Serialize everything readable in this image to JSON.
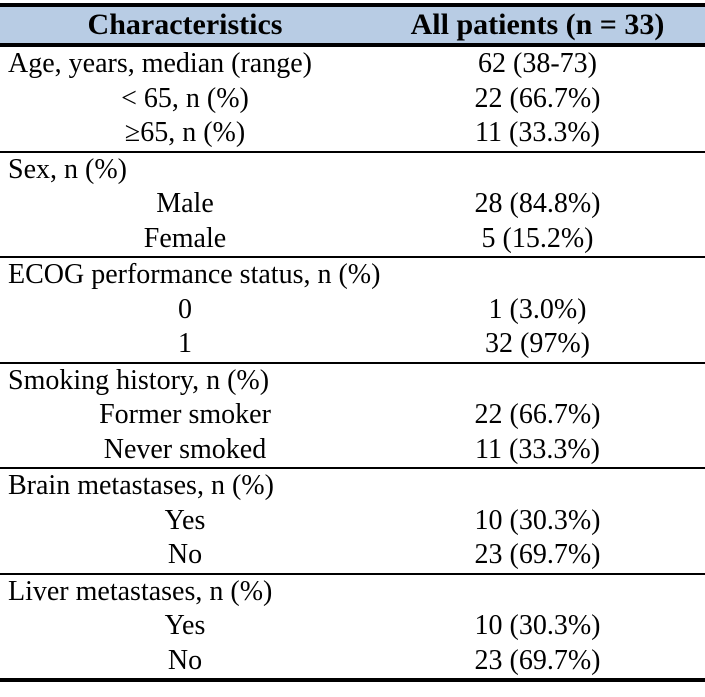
{
  "colors": {
    "header_bg": "#b8cce4",
    "rule": "#000000",
    "text": "#000000"
  },
  "table": {
    "header": {
      "characteristics_label": "Characteristics",
      "patients_label": "All patients (n = 33)"
    },
    "sections": [
      {
        "rows": [
          {
            "label": "Age, years, median (range)",
            "value": "62 (38-73)",
            "indent": false
          },
          {
            "label": "< 65, n (%)",
            "value": "22 (66.7%)",
            "indent": true
          },
          {
            "label": "≥65, n (%)",
            "value": "11 (33.3%)",
            "indent": true
          }
        ]
      },
      {
        "rows": [
          {
            "label": "Sex, n (%)",
            "value": "",
            "indent": false
          },
          {
            "label": "Male",
            "value": "28 (84.8%)",
            "indent": true
          },
          {
            "label": "Female",
            "value": "5 (15.2%)",
            "indent": true
          }
        ]
      },
      {
        "rows": [
          {
            "label": "ECOG performance status, n (%)",
            "value": "",
            "indent": false
          },
          {
            "label": "0",
            "value": "1 (3.0%)",
            "indent": true
          },
          {
            "label": "1",
            "value": "32 (97%)",
            "indent": true
          }
        ]
      },
      {
        "rows": [
          {
            "label": "Smoking history, n (%)",
            "value": "",
            "indent": false
          },
          {
            "label": "Former smoker",
            "value": "22 (66.7%)",
            "indent": true
          },
          {
            "label": "Never smoked",
            "value": "11 (33.3%)",
            "indent": true
          }
        ]
      },
      {
        "rows": [
          {
            "label": "Brain metastases, n (%)",
            "value": "",
            "indent": false
          },
          {
            "label": "Yes",
            "value": "10 (30.3%)",
            "indent": true
          },
          {
            "label": "No",
            "value": "23 (69.7%)",
            "indent": true
          }
        ]
      },
      {
        "rows": [
          {
            "label": "Liver metastases, n (%)",
            "value": "",
            "indent": false
          },
          {
            "label": "Yes",
            "value": "10 (30.3%)",
            "indent": true
          },
          {
            "label": "No",
            "value": "23 (69.7%)",
            "indent": true
          }
        ]
      }
    ]
  }
}
